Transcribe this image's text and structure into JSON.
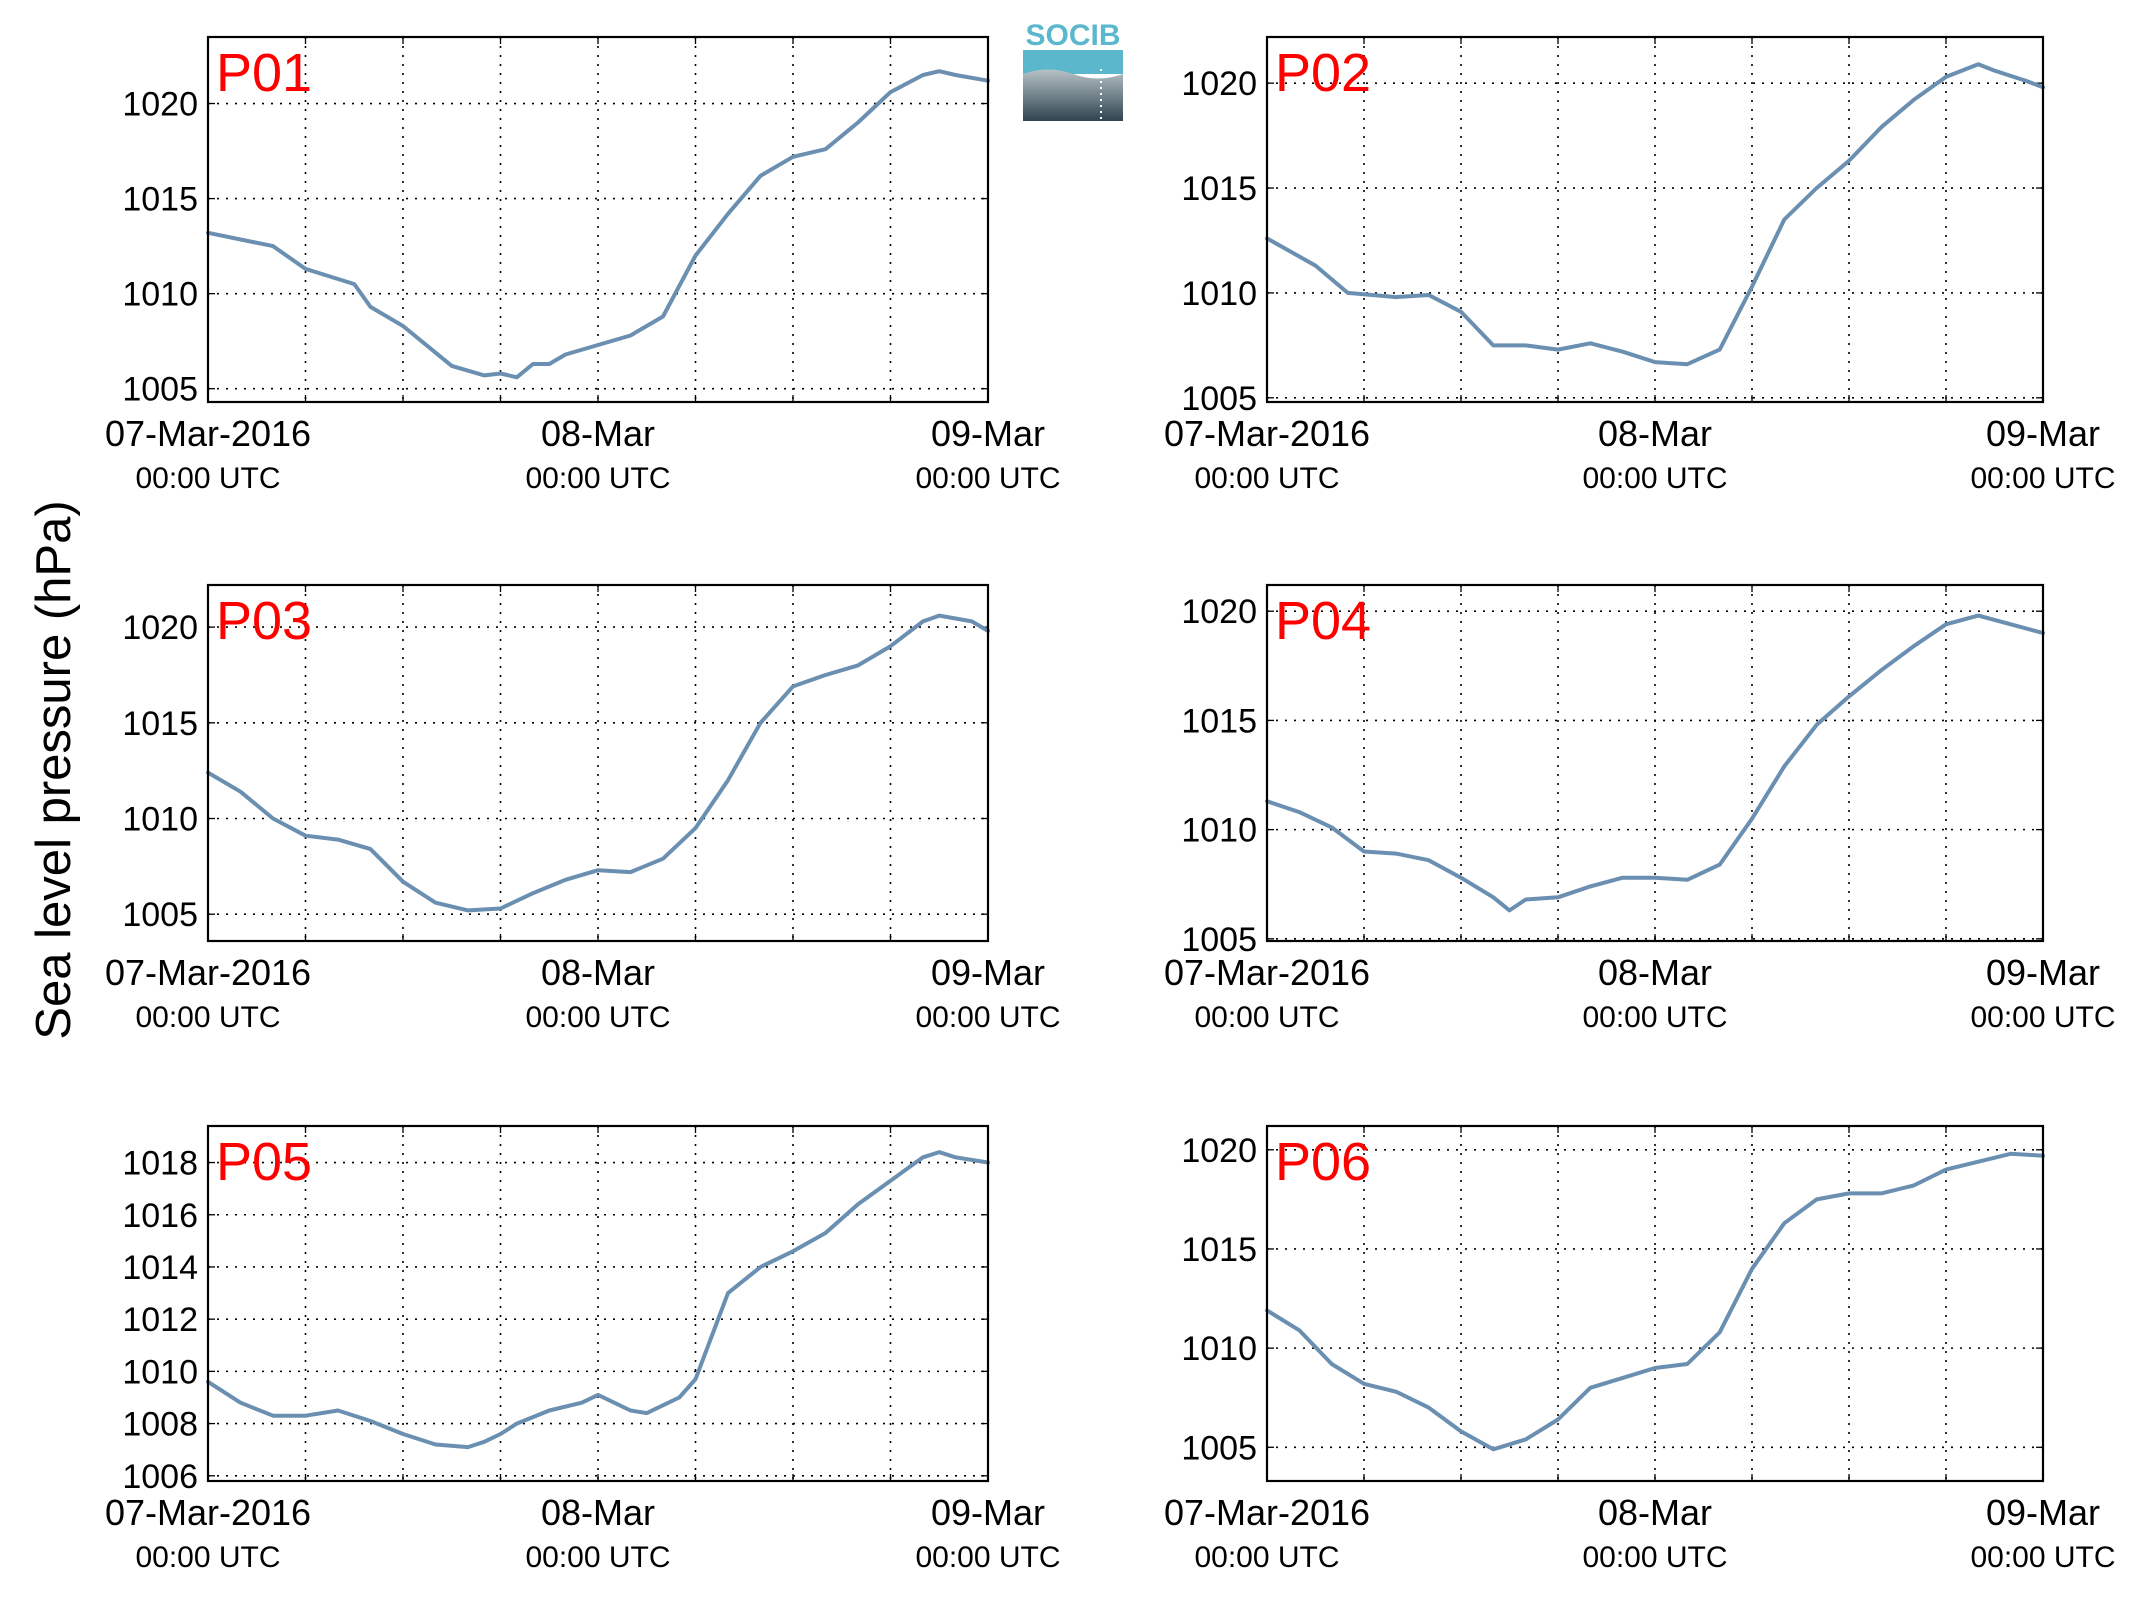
{
  "ylabel": "Sea level pressure (hPa)",
  "logo": {
    "text": "SOCIB",
    "color_top": "#5bb8cc",
    "color_bottom": "#2e4450"
  },
  "colors": {
    "line": "#6a8fb0",
    "station_label": "#ff0000",
    "grid": "#000000"
  },
  "x_tick_labels": [
    {
      "date": "07-Mar-2016",
      "time": "00:00 UTC"
    },
    {
      "date": "08-Mar",
      "time": "00:00 UTC"
    },
    {
      "date": "09-Mar",
      "time": "00:00 UTC"
    }
  ],
  "chart_data": [
    {
      "type": "line",
      "label": "P01",
      "xlim": [
        "2016-03-07 00:00",
        "2016-03-09 00:00"
      ],
      "ylim": [
        1004.3,
        1023.5
      ],
      "yticks": [
        1005,
        1010,
        1015,
        1020
      ],
      "grid": true,
      "x": [
        "2016-03-07 00:00",
        "2016-03-07 04:00",
        "2016-03-07 06:00",
        "2016-03-07 09:00",
        "2016-03-07 10:00",
        "2016-03-07 12:00",
        "2016-03-07 15:00",
        "2016-03-07 17:00",
        "2016-03-07 18:00",
        "2016-03-07 19:00",
        "2016-03-07 20:00",
        "2016-03-07 21:00",
        "2016-03-07 22:00",
        "2016-03-08 00:00",
        "2016-03-08 02:00",
        "2016-03-08 04:00",
        "2016-03-08 06:00",
        "2016-03-08 08:00",
        "2016-03-08 10:00",
        "2016-03-08 12:00",
        "2016-03-08 14:00",
        "2016-03-08 16:00",
        "2016-03-08 18:00",
        "2016-03-08 20:00",
        "2016-03-08 21:00",
        "2016-03-08 22:00",
        "2016-03-09 00:00"
      ],
      "values": [
        1013.2,
        1012.5,
        1011.3,
        1010.5,
        1009.3,
        1008.3,
        1006.2,
        1005.7,
        1005.8,
        1005.6,
        1006.3,
        1006.3,
        1006.8,
        1007.3,
        1007.8,
        1008.8,
        1012.0,
        1014.2,
        1016.2,
        1017.2,
        1017.6,
        1019.0,
        1020.6,
        1021.5,
        1021.7,
        1021.5,
        1021.2
      ]
    },
    {
      "type": "line",
      "label": "P02",
      "xlim": [
        "2016-03-07 00:00",
        "2016-03-09 00:00"
      ],
      "ylim": [
        1004.8,
        1022.2
      ],
      "yticks": [
        1005,
        1010,
        1015,
        1020
      ],
      "grid": true,
      "x": [
        "2016-03-07 00:00",
        "2016-03-07 03:00",
        "2016-03-07 05:00",
        "2016-03-07 08:00",
        "2016-03-07 10:00",
        "2016-03-07 12:00",
        "2016-03-07 14:00",
        "2016-03-07 16:00",
        "2016-03-07 18:00",
        "2016-03-07 20:00",
        "2016-03-07 22:00",
        "2016-03-08 00:00",
        "2016-03-08 02:00",
        "2016-03-08 04:00",
        "2016-03-08 06:00",
        "2016-03-08 08:00",
        "2016-03-08 10:00",
        "2016-03-08 12:00",
        "2016-03-08 14:00",
        "2016-03-08 16:00",
        "2016-03-08 18:00",
        "2016-03-08 20:00",
        "2016-03-08 21:00",
        "2016-03-08 23:00",
        "2016-03-09 00:00"
      ],
      "values": [
        1012.6,
        1011.3,
        1010.0,
        1009.8,
        1009.9,
        1009.1,
        1007.5,
        1007.5,
        1007.3,
        1007.6,
        1007.2,
        1006.7,
        1006.6,
        1007.3,
        1010.3,
        1013.5,
        1015.0,
        1016.3,
        1017.9,
        1019.2,
        1020.3,
        1020.9,
        1020.6,
        1020.1,
        1019.8
      ]
    },
    {
      "type": "line",
      "label": "P03",
      "xlim": [
        "2016-03-07 00:00",
        "2016-03-09 00:00"
      ],
      "ylim": [
        1003.6,
        1022.2
      ],
      "yticks": [
        1005,
        1010,
        1015,
        1020
      ],
      "grid": true,
      "x": [
        "2016-03-07 00:00",
        "2016-03-07 02:00",
        "2016-03-07 04:00",
        "2016-03-07 06:00",
        "2016-03-07 08:00",
        "2016-03-07 10:00",
        "2016-03-07 12:00",
        "2016-03-07 14:00",
        "2016-03-07 16:00",
        "2016-03-07 18:00",
        "2016-03-07 20:00",
        "2016-03-07 22:00",
        "2016-03-08 00:00",
        "2016-03-08 02:00",
        "2016-03-08 04:00",
        "2016-03-08 06:00",
        "2016-03-08 08:00",
        "2016-03-08 10:00",
        "2016-03-08 12:00",
        "2016-03-08 14:00",
        "2016-03-08 16:00",
        "2016-03-08 18:00",
        "2016-03-08 20:00",
        "2016-03-08 21:00",
        "2016-03-08 23:00",
        "2016-03-09 00:00"
      ],
      "values": [
        1012.4,
        1011.4,
        1010.0,
        1009.1,
        1008.9,
        1008.4,
        1006.7,
        1005.6,
        1005.2,
        1005.3,
        1006.1,
        1006.8,
        1007.3,
        1007.2,
        1007.9,
        1009.5,
        1012.0,
        1015.0,
        1016.9,
        1017.5,
        1018.0,
        1019.0,
        1020.3,
        1020.6,
        1020.3,
        1019.8
      ]
    },
    {
      "type": "line",
      "label": "P04",
      "xlim": [
        "2016-03-07 00:00",
        "2016-03-09 00:00"
      ],
      "ylim": [
        1004.9,
        1021.2
      ],
      "yticks": [
        1005,
        1010,
        1015,
        1020
      ],
      "grid": true,
      "x": [
        "2016-03-07 00:00",
        "2016-03-07 02:00",
        "2016-03-07 04:00",
        "2016-03-07 06:00",
        "2016-03-07 08:00",
        "2016-03-07 10:00",
        "2016-03-07 12:00",
        "2016-03-07 14:00",
        "2016-03-07 15:00",
        "2016-03-07 16:00",
        "2016-03-07 18:00",
        "2016-03-07 20:00",
        "2016-03-07 22:00",
        "2016-03-08 00:00",
        "2016-03-08 02:00",
        "2016-03-08 04:00",
        "2016-03-08 06:00",
        "2016-03-08 08:00",
        "2016-03-08 10:00",
        "2016-03-08 12:00",
        "2016-03-08 14:00",
        "2016-03-08 16:00",
        "2016-03-08 18:00",
        "2016-03-08 20:00",
        "2016-03-08 22:00",
        "2016-03-09 00:00"
      ],
      "values": [
        1011.3,
        1010.8,
        1010.1,
        1009.0,
        1008.9,
        1008.6,
        1007.8,
        1006.9,
        1006.3,
        1006.8,
        1006.9,
        1007.4,
        1007.8,
        1007.8,
        1007.7,
        1008.4,
        1010.5,
        1012.9,
        1014.8,
        1016.1,
        1017.3,
        1018.4,
        1019.4,
        1019.8,
        1019.4,
        1019.0
      ]
    },
    {
      "type": "line",
      "label": "P05",
      "xlim": [
        "2016-03-07 00:00",
        "2016-03-09 00:00"
      ],
      "ylim": [
        1005.8,
        1019.4
      ],
      "yticks": [
        1006,
        1008,
        1010,
        1012,
        1014,
        1016,
        1018
      ],
      "grid": true,
      "x": [
        "2016-03-07 00:00",
        "2016-03-07 02:00",
        "2016-03-07 04:00",
        "2016-03-07 06:00",
        "2016-03-07 08:00",
        "2016-03-07 10:00",
        "2016-03-07 12:00",
        "2016-03-07 14:00",
        "2016-03-07 16:00",
        "2016-03-07 17:00",
        "2016-03-07 18:00",
        "2016-03-07 19:00",
        "2016-03-07 21:00",
        "2016-03-07 23:00",
        "2016-03-08 00:00",
        "2016-03-08 02:00",
        "2016-03-08 03:00",
        "2016-03-08 05:00",
        "2016-03-08 06:00",
        "2016-03-08 08:00",
        "2016-03-08 10:00",
        "2016-03-08 12:00",
        "2016-03-08 14:00",
        "2016-03-08 16:00",
        "2016-03-08 18:00",
        "2016-03-08 20:00",
        "2016-03-08 21:00",
        "2016-03-08 22:00",
        "2016-03-09 00:00"
      ],
      "values": [
        1009.6,
        1008.8,
        1008.3,
        1008.3,
        1008.5,
        1008.1,
        1007.6,
        1007.2,
        1007.1,
        1007.3,
        1007.6,
        1008.0,
        1008.5,
        1008.8,
        1009.1,
        1008.5,
        1008.4,
        1009.0,
        1009.7,
        1013.0,
        1014.0,
        1014.6,
        1015.3,
        1016.4,
        1017.3,
        1018.2,
        1018.4,
        1018.2,
        1018.0
      ]
    },
    {
      "type": "line",
      "label": "P06",
      "xlim": [
        "2016-03-07 00:00",
        "2016-03-09 00:00"
      ],
      "ylim": [
        1003.3,
        1021.2
      ],
      "yticks": [
        1005,
        1010,
        1015,
        1020
      ],
      "grid": true,
      "x": [
        "2016-03-07 00:00",
        "2016-03-07 02:00",
        "2016-03-07 04:00",
        "2016-03-07 06:00",
        "2016-03-07 08:00",
        "2016-03-07 10:00",
        "2016-03-07 12:00",
        "2016-03-07 14:00",
        "2016-03-07 16:00",
        "2016-03-07 18:00",
        "2016-03-07 20:00",
        "2016-03-07 22:00",
        "2016-03-08 00:00",
        "2016-03-08 02:00",
        "2016-03-08 04:00",
        "2016-03-08 06:00",
        "2016-03-08 08:00",
        "2016-03-08 10:00",
        "2016-03-08 12:00",
        "2016-03-08 14:00",
        "2016-03-08 16:00",
        "2016-03-08 18:00",
        "2016-03-08 20:00",
        "2016-03-08 22:00",
        "2016-03-09 00:00"
      ],
      "values": [
        1011.9,
        1010.9,
        1009.2,
        1008.2,
        1007.8,
        1007.0,
        1005.8,
        1004.9,
        1005.4,
        1006.4,
        1008.0,
        1008.5,
        1009.0,
        1009.2,
        1010.8,
        1014.0,
        1016.3,
        1017.5,
        1017.8,
        1017.8,
        1018.2,
        1019.0,
        1019.4,
        1019.8,
        1019.7
      ]
    }
  ]
}
